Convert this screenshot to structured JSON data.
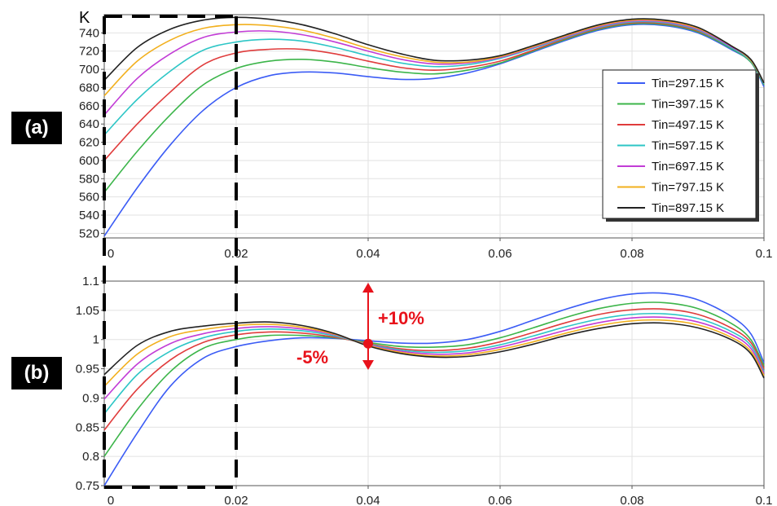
{
  "panel_labels": [
    "(a)",
    "(b)"
  ],
  "chart_data": [
    {
      "type": "line",
      "title": "",
      "ylabel": "K",
      "xlim": [
        0,
        0.1
      ],
      "ylim": [
        515,
        760
      ],
      "xticks": [
        0,
        0.02,
        0.04,
        0.06,
        0.08,
        0.1
      ],
      "xtick_labels": [
        "0",
        "0.02",
        "0.04",
        "0.06",
        "0.08",
        "0.1"
      ],
      "yticks": [
        520,
        540,
        560,
        580,
        600,
        620,
        640,
        660,
        680,
        700,
        720,
        740
      ],
      "ytick_labels": [
        "520",
        "540",
        "560",
        "580",
        "600",
        "620",
        "640",
        "660",
        "680",
        "700",
        "720",
        "740"
      ],
      "grid": true,
      "legend": "right",
      "series": [
        {
          "name": "Tin=297.15 K",
          "color": "#3b5cf5",
          "x": [
            0,
            0.005,
            0.01,
            0.015,
            0.02,
            0.025,
            0.03,
            0.035,
            0.04,
            0.045,
            0.05,
            0.055,
            0.06,
            0.065,
            0.07,
            0.075,
            0.08,
            0.085,
            0.09,
            0.095,
            0.098,
            0.1
          ],
          "y": [
            517,
            570,
            617,
            655,
            680,
            693,
            697,
            696,
            692,
            689,
            690,
            696,
            706,
            719,
            732,
            743,
            749,
            748,
            740,
            722,
            708,
            681
          ]
        },
        {
          "name": "Tin=397.15 K",
          "color": "#3cb54a",
          "x": [
            0,
            0.005,
            0.01,
            0.015,
            0.02,
            0.025,
            0.03,
            0.035,
            0.04,
            0.045,
            0.05,
            0.055,
            0.06,
            0.065,
            0.07,
            0.075,
            0.08,
            0.085,
            0.09,
            0.095,
            0.098,
            0.1
          ],
          "y": [
            565,
            610,
            650,
            683,
            701,
            709,
            711,
            708,
            702,
            697,
            695,
            699,
            707,
            720,
            733,
            744,
            750,
            749,
            741,
            723,
            708,
            683
          ]
        },
        {
          "name": "Tin=497.15 K",
          "color": "#e03c3c",
          "x": [
            0,
            0.005,
            0.01,
            0.015,
            0.02,
            0.025,
            0.03,
            0.035,
            0.04,
            0.045,
            0.05,
            0.055,
            0.06,
            0.065,
            0.07,
            0.075,
            0.08,
            0.085,
            0.09,
            0.095,
            0.098,
            0.1
          ],
          "y": [
            600,
            640,
            675,
            705,
            718,
            722,
            722,
            717,
            709,
            702,
            699,
            702,
            709,
            721,
            734,
            745,
            751,
            750,
            742,
            724,
            709,
            684
          ]
        },
        {
          "name": "Tin=597.15 K",
          "color": "#2ec6c6",
          "x": [
            0,
            0.005,
            0.01,
            0.015,
            0.02,
            0.025,
            0.03,
            0.035,
            0.04,
            0.045,
            0.05,
            0.055,
            0.06,
            0.065,
            0.07,
            0.075,
            0.08,
            0.085,
            0.09,
            0.095,
            0.098,
            0.1
          ],
          "y": [
            628,
            667,
            698,
            721,
            730,
            733,
            731,
            724,
            715,
            707,
            703,
            705,
            712,
            723,
            735,
            746,
            752,
            751,
            743,
            724,
            709,
            684
          ]
        },
        {
          "name": "Tin=697.15 K",
          "color": "#c23cd6",
          "x": [
            0,
            0.005,
            0.01,
            0.015,
            0.02,
            0.025,
            0.03,
            0.035,
            0.04,
            0.045,
            0.05,
            0.055,
            0.06,
            0.065,
            0.07,
            0.075,
            0.08,
            0.085,
            0.09,
            0.095,
            0.098,
            0.1
          ],
          "y": [
            650,
            690,
            717,
            735,
            741,
            742,
            738,
            730,
            720,
            711,
            706,
            707,
            713,
            724,
            736,
            747,
            753,
            752,
            744,
            725,
            710,
            685
          ]
        },
        {
          "name": "Tin=797.15 K",
          "color": "#f2b01e",
          "x": [
            0,
            0.005,
            0.01,
            0.015,
            0.02,
            0.025,
            0.03,
            0.035,
            0.04,
            0.045,
            0.05,
            0.055,
            0.06,
            0.065,
            0.07,
            0.075,
            0.08,
            0.085,
            0.09,
            0.095,
            0.098,
            0.1
          ],
          "y": [
            671,
            709,
            732,
            745,
            749,
            748,
            743,
            734,
            723,
            714,
            708,
            708,
            714,
            725,
            737,
            748,
            754,
            753,
            745,
            726,
            710,
            685
          ]
        },
        {
          "name": "Tin=897.15 K",
          "color": "#222222",
          "x": [
            0,
            0.005,
            0.01,
            0.015,
            0.02,
            0.025,
            0.03,
            0.035,
            0.04,
            0.045,
            0.05,
            0.055,
            0.06,
            0.065,
            0.07,
            0.075,
            0.08,
            0.085,
            0.09,
            0.095,
            0.098,
            0.1
          ],
          "y": [
            688,
            724,
            744,
            754,
            757,
            755,
            749,
            739,
            727,
            717,
            710,
            710,
            715,
            726,
            738,
            749,
            755,
            754,
            746,
            726,
            711,
            685
          ]
        }
      ]
    },
    {
      "type": "line",
      "title": "",
      "ylabel": "",
      "xlim": [
        0,
        0.1
      ],
      "ylim": [
        0.75,
        1.1
      ],
      "xticks": [
        0,
        0.02,
        0.04,
        0.06,
        0.08,
        0.1
      ],
      "xtick_labels": [
        "0",
        "0.02",
        "0.04",
        "0.06",
        "0.08",
        "0.1"
      ],
      "yticks": [
        0.75,
        0.8,
        0.85,
        0.9,
        0.95,
        1,
        1.05,
        1.1
      ],
      "ytick_labels": [
        "0.75",
        "0.8",
        "0.85",
        "0.9",
        "0.95",
        "1",
        "1.05",
        "1.1"
      ],
      "grid": true,
      "annotations": [
        {
          "text": "+10%",
          "x": 0.04,
          "y": 1.06
        },
        {
          "text": "-5%",
          "x": 0.04,
          "y": 0.98
        }
      ],
      "series": [
        {
          "name": "Tin=297.15 K",
          "color": "#3b5cf5",
          "x": [
            0,
            0.005,
            0.01,
            0.015,
            0.02,
            0.025,
            0.03,
            0.035,
            0.04,
            0.045,
            0.05,
            0.055,
            0.06,
            0.065,
            0.07,
            0.075,
            0.08,
            0.085,
            0.09,
            0.095,
            0.098,
            0.1
          ],
          "y": [
            0.75,
            0.84,
            0.92,
            0.968,
            0.988,
            0.998,
            1.003,
            1.002,
            0.998,
            0.994,
            0.994,
            1.0,
            1.014,
            1.033,
            1.052,
            1.068,
            1.078,
            1.079,
            1.068,
            1.04,
            1.01,
            0.96
          ]
        },
        {
          "name": "Tin=397.15 K",
          "color": "#3cb54a",
          "x": [
            0,
            0.005,
            0.01,
            0.015,
            0.02,
            0.025,
            0.03,
            0.035,
            0.04,
            0.045,
            0.05,
            0.055,
            0.06,
            0.065,
            0.07,
            0.075,
            0.08,
            0.085,
            0.09,
            0.095,
            0.098,
            0.1
          ],
          "y": [
            0.8,
            0.88,
            0.945,
            0.985,
            1.0,
            1.007,
            1.007,
            1.003,
            0.995,
            0.988,
            0.987,
            0.991,
            1.003,
            1.02,
            1.038,
            1.053,
            1.062,
            1.063,
            1.053,
            1.028,
            1.0,
            0.955
          ]
        },
        {
          "name": "Tin=497.15 K",
          "color": "#e03c3c",
          "x": [
            0,
            0.005,
            0.01,
            0.015,
            0.02,
            0.025,
            0.03,
            0.035,
            0.04,
            0.045,
            0.05,
            0.055,
            0.06,
            0.065,
            0.07,
            0.075,
            0.08,
            0.085,
            0.09,
            0.095,
            0.098,
            0.1
          ],
          "y": [
            0.845,
            0.915,
            0.965,
            0.995,
            1.008,
            1.013,
            1.011,
            1.004,
            0.993,
            0.984,
            0.981,
            0.985,
            0.996,
            1.012,
            1.029,
            1.043,
            1.051,
            1.052,
            1.043,
            1.02,
            0.995,
            0.95
          ]
        },
        {
          "name": "Tin=597.15 K",
          "color": "#2ec6c6",
          "x": [
            0,
            0.005,
            0.01,
            0.015,
            0.02,
            0.025,
            0.03,
            0.035,
            0.04,
            0.045,
            0.05,
            0.055,
            0.06,
            0.065,
            0.07,
            0.075,
            0.08,
            0.085,
            0.09,
            0.095,
            0.098,
            0.1
          ],
          "y": [
            0.873,
            0.94,
            0.98,
            1.003,
            1.014,
            1.018,
            1.015,
            1.006,
            0.992,
            0.982,
            0.978,
            0.981,
            0.991,
            1.006,
            1.022,
            1.035,
            1.043,
            1.044,
            1.036,
            1.014,
            0.99,
            0.945
          ]
        },
        {
          "name": "Tin=697.15 K",
          "color": "#c23cd6",
          "x": [
            0,
            0.005,
            0.01,
            0.015,
            0.02,
            0.025,
            0.03,
            0.035,
            0.04,
            0.045,
            0.05,
            0.055,
            0.06,
            0.065,
            0.07,
            0.075,
            0.08,
            0.085,
            0.09,
            0.095,
            0.098,
            0.1
          ],
          "y": [
            0.898,
            0.958,
            0.993,
            1.01,
            1.019,
            1.022,
            1.018,
            1.008,
            0.991,
            0.98,
            0.975,
            0.977,
            0.987,
            1.001,
            1.016,
            1.029,
            1.037,
            1.038,
            1.03,
            1.009,
            0.985,
            0.942
          ]
        },
        {
          "name": "Tin=797.15 K",
          "color": "#f2b01e",
          "x": [
            0,
            0.005,
            0.01,
            0.015,
            0.02,
            0.025,
            0.03,
            0.035,
            0.04,
            0.045,
            0.05,
            0.055,
            0.06,
            0.065,
            0.07,
            0.075,
            0.08,
            0.085,
            0.09,
            0.095,
            0.098,
            0.1
          ],
          "y": [
            0.92,
            0.975,
            1.005,
            1.017,
            1.024,
            1.026,
            1.021,
            1.009,
            0.99,
            0.978,
            0.972,
            0.974,
            0.983,
            0.996,
            1.011,
            1.024,
            1.032,
            1.033,
            1.025,
            1.004,
            0.98,
            0.938
          ]
        },
        {
          "name": "Tin=897.15 K",
          "color": "#222222",
          "x": [
            0,
            0.005,
            0.01,
            0.015,
            0.02,
            0.025,
            0.03,
            0.035,
            0.04,
            0.045,
            0.05,
            0.055,
            0.06,
            0.065,
            0.07,
            0.075,
            0.08,
            0.085,
            0.09,
            0.095,
            0.098,
            0.1
          ],
          "y": [
            0.94,
            0.99,
            1.014,
            1.023,
            1.028,
            1.03,
            1.024,
            1.01,
            0.989,
            0.976,
            0.97,
            0.971,
            0.979,
            0.992,
            1.007,
            1.019,
            1.027,
            1.028,
            1.02,
            1.0,
            0.976,
            0.934
          ]
        }
      ]
    }
  ]
}
